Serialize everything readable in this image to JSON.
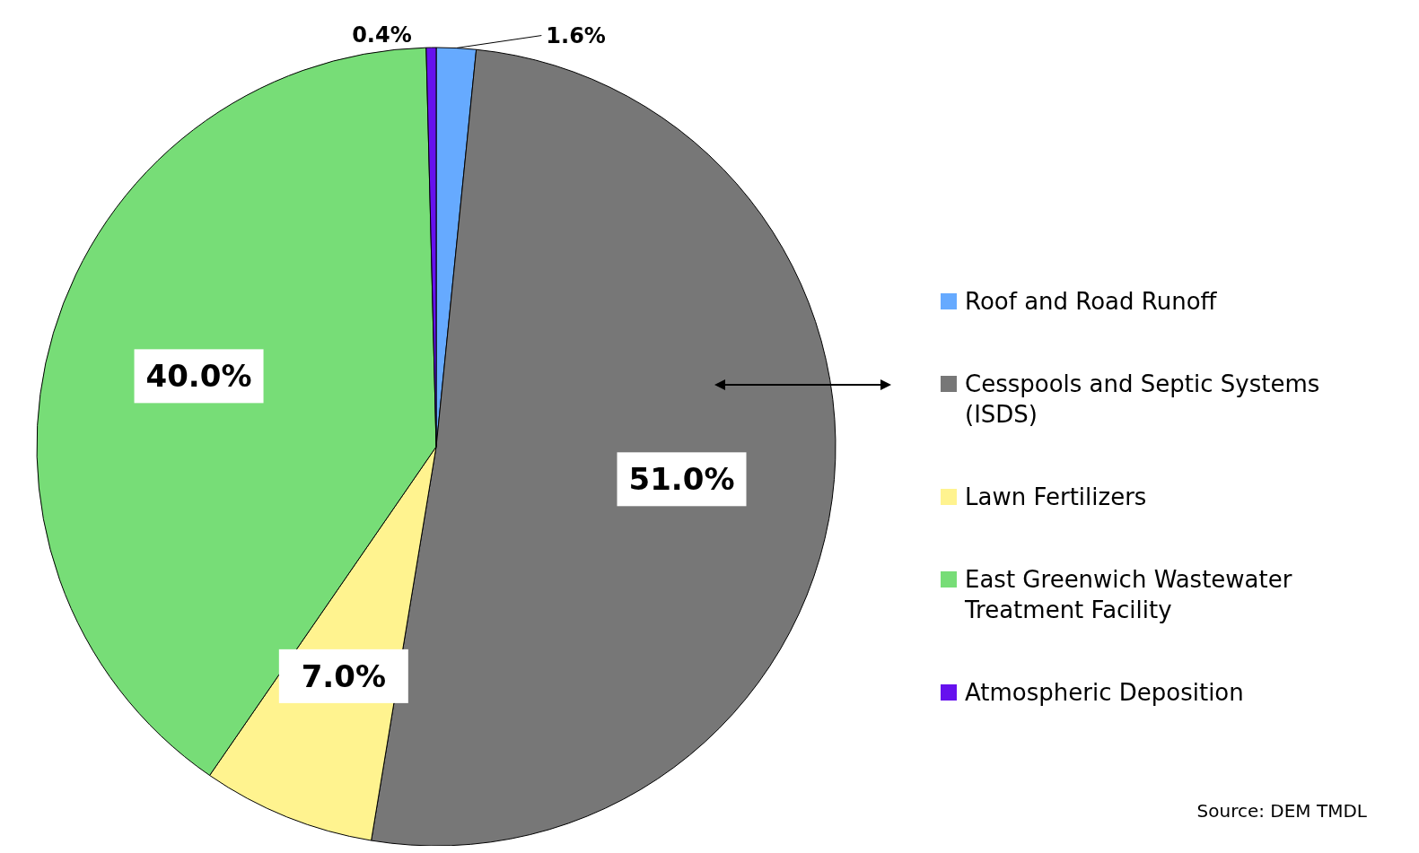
{
  "chart_data": {
    "type": "pie",
    "categories": [
      "Roof and Road Runoff",
      "Cesspools and Septic Systems (ISDS)",
      "Lawn Fertilizers",
      "East Greenwich Wastewater Treatment Facility",
      "Atmospheric Deposition"
    ],
    "values": [
      1.6,
      51.0,
      7.0,
      40.0,
      0.4
    ],
    "colors": [
      "#66aaff",
      "#777777",
      "#fff38f",
      "#77dd77",
      "#6611ee"
    ],
    "value_labels": [
      "1.6%",
      "51.0%",
      "7.0%",
      "40.0%",
      "0.4%"
    ],
    "legend": "right",
    "annotations": [
      "Source:  DEM TMDL"
    ]
  }
}
